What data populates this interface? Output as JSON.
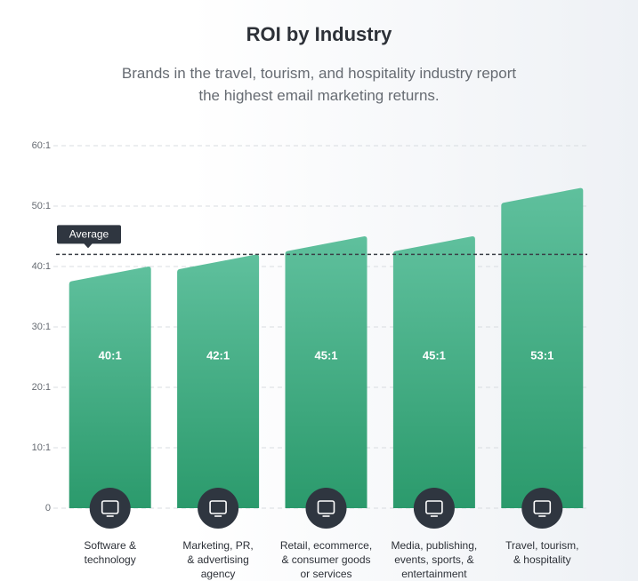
{
  "chart_data": {
    "type": "bar",
    "title": "ROI by Industry",
    "subtitle": "Brands in the travel, tourism, and hospitality industry report\nthe highest email marketing returns.",
    "categories": [
      "Software &\ntechnology",
      "Marketing, PR,\n& advertising\nagency",
      "Retail, ecommerce,\n& consumer goods\nor services",
      "Media, publishing,\nevents, sports, &\nentertainment",
      "Travel, tourism,\n& hospitality"
    ],
    "values": [
      40,
      42,
      45,
      45,
      53
    ],
    "value_labels": [
      "40:1",
      "42:1",
      "45:1",
      "45:1",
      "53:1"
    ],
    "color": "#3daa80",
    "average": {
      "label": "Average",
      "value": 42
    },
    "ylim": [
      0,
      60
    ],
    "yticks": [
      0,
      {
        "value": 10,
        "label": "10:1"
      },
      {
        "value": 20,
        "label": "20:1"
      },
      {
        "value": 30,
        "label": "30:1"
      },
      {
        "value": 40,
        "label": "40:1"
      },
      {
        "value": 50,
        "label": "50:1"
      },
      {
        "value": 60,
        "label": "60:1"
      }
    ],
    "grid": true
  }
}
